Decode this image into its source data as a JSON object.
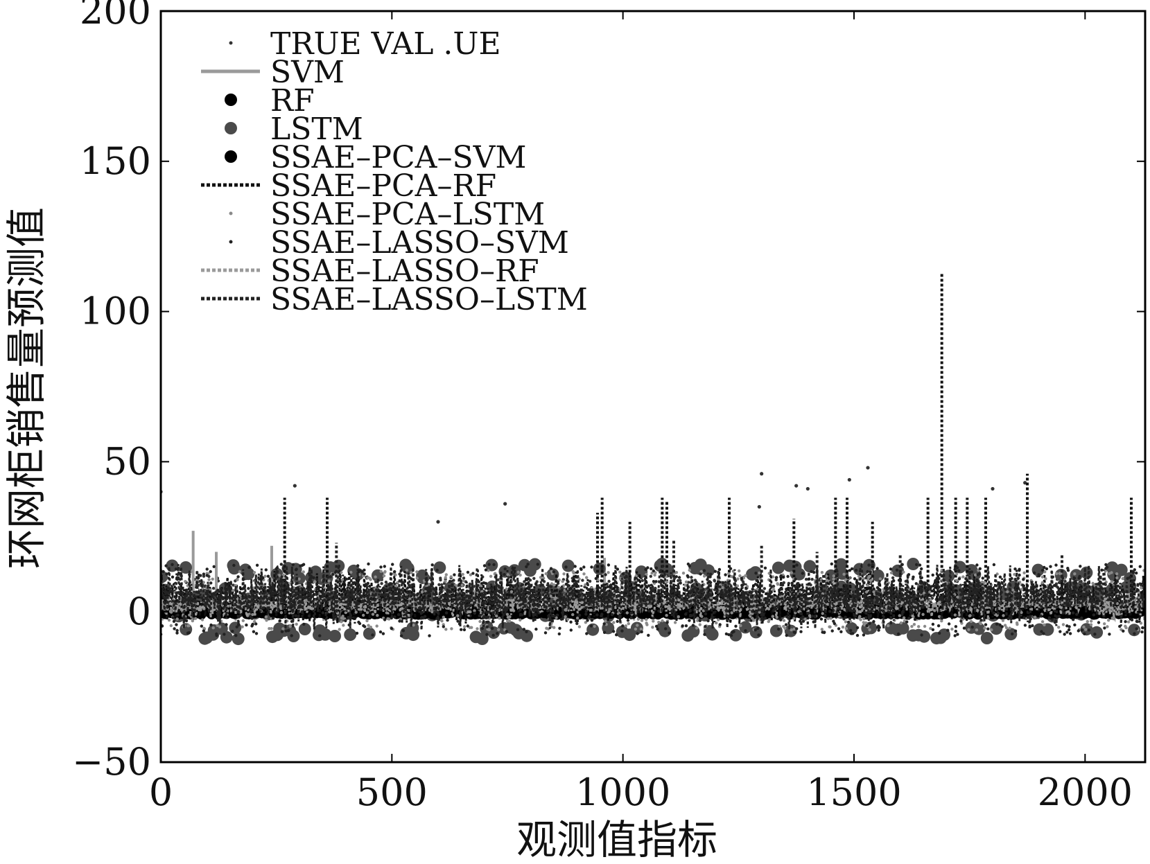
{
  "chart_data": {
    "type": "scatter",
    "xlabel": "观测值指标",
    "ylabel": "环网柜销售量预测值",
    "xlim": [
      0,
      2130
    ],
    "ylim": [
      -50,
      200
    ],
    "x_ticks": [
      0,
      500,
      1000,
      1500,
      2000
    ],
    "y_ticks": [
      -50,
      0,
      50,
      100,
      150,
      200
    ],
    "grid": false,
    "legend_position": "top-left",
    "x_count": 2130,
    "series": [
      {
        "name": "TRUE VAL .UE",
        "style": "dot",
        "color": "#333333",
        "range": [
          -2,
          12
        ],
        "outliers": [
          [
            0,
            40
          ],
          [
            290,
            42
          ],
          [
            745,
            36
          ],
          [
            1300,
            46
          ],
          [
            1375,
            42
          ],
          [
            1400,
            41
          ],
          [
            1490,
            44
          ],
          [
            1530,
            48
          ],
          [
            1800,
            41
          ],
          [
            1870,
            43
          ],
          [
            600,
            30
          ],
          [
            1295,
            35
          ]
        ]
      },
      {
        "name": "SVM",
        "style": "line",
        "color": "#9a9a9a",
        "range": [
          -3,
          8
        ],
        "spikes": [
          [
            70,
            27
          ],
          [
            240,
            22
          ],
          [
            120,
            20
          ],
          [
            960,
            18
          ],
          [
            1460,
            16
          ]
        ]
      },
      {
        "name": "RF",
        "style": "dot-large",
        "color": "#000000",
        "range": [
          -1,
          2
        ]
      },
      {
        "name": "LSTM",
        "style": "dot-large",
        "color": "#4a4a4a",
        "range": [
          -9,
          16
        ]
      },
      {
        "name": "SSAE–PCA–SVM",
        "style": "dot-large",
        "color": "#000000",
        "range": [
          -1,
          1
        ]
      },
      {
        "name": "SSAE–PCA–RF",
        "style": "dotted-line",
        "color": "#111111",
        "range": [
          -4,
          14
        ],
        "spikes": [
          [
            268,
            38
          ],
          [
            360,
            38
          ],
          [
            955,
            38
          ],
          [
            1085,
            38
          ],
          [
            1095,
            37
          ],
          [
            1230,
            38
          ],
          [
            1460,
            38
          ],
          [
            1485,
            38
          ],
          [
            1660,
            38
          ],
          [
            1690,
            113
          ],
          [
            1720,
            38
          ],
          [
            1745,
            38
          ],
          [
            1785,
            38
          ],
          [
            1875,
            46
          ],
          [
            2100,
            38
          ],
          [
            945,
            33
          ],
          [
            1015,
            30
          ],
          [
            1540,
            30
          ],
          [
            1370,
            31
          ]
        ]
      },
      {
        "name": "SSAE–PCA–LSTM",
        "style": "dot",
        "color": "#8a8a8a",
        "range": [
          -6,
          14
        ]
      },
      {
        "name": "SSAE–LASSO–SVM",
        "style": "dot",
        "color": "#222222",
        "range": [
          -8,
          16
        ]
      },
      {
        "name": "SSAE–LASSO–RF",
        "style": "dotted-line",
        "color": "#9a9a9a",
        "range": [
          -2,
          6
        ]
      },
      {
        "name": "SSAE–LASSO–LSTM",
        "style": "dotted-line",
        "color": "#222222",
        "range": [
          -6,
          16
        ],
        "spikes": [
          [
            380,
            23
          ],
          [
            1110,
            24
          ],
          [
            1300,
            22
          ],
          [
            1420,
            20
          ],
          [
            1600,
            19
          ],
          [
            1950,
            19
          ]
        ]
      }
    ]
  }
}
